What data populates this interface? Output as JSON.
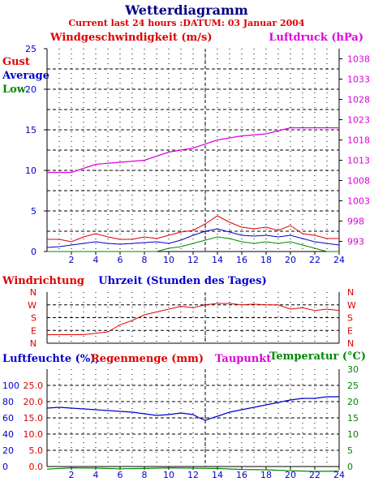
{
  "header": {
    "title": "Wetterdiagramm",
    "subtitle": "Current last 24 hours :DATUM: 03 Januar 2004"
  },
  "colors": {
    "red": "#dd0000",
    "blue": "#0000cc",
    "green": "#008800",
    "magenta": "#dd00dd",
    "black": "#000000",
    "grid": "#000000",
    "title": "#000080"
  },
  "chart_data": [
    {
      "type": "line",
      "title": "",
      "left_axis_label": "Windgeschwindigkeit (m/s)",
      "right_axis_label": "Luftdruck (hPa)",
      "xlabel": "Uhrzeit (Stunden des Tages)",
      "xlim": [
        0,
        24
      ],
      "x_ticks": [
        "2",
        "4",
        "6",
        "8",
        "10",
        "12",
        "14",
        "16",
        "18",
        "20",
        "22",
        "24"
      ],
      "ylim_left": [
        0,
        25
      ],
      "y_ticks_left": [
        "0",
        "5",
        "10",
        "15",
        "20",
        "25"
      ],
      "ylim_right": [
        990.5,
        1040.5
      ],
      "y_ticks_right": [
        "993",
        "998",
        "1003",
        "1008",
        "1013",
        "1018",
        "1023",
        "1028",
        "1033",
        "1038"
      ],
      "legend": [
        "Gust",
        "Average",
        "Low"
      ],
      "legend_placement": "top-left",
      "series": [
        {
          "name": "Gust",
          "color": "#dd0000",
          "x": [
            0,
            1,
            2,
            3,
            4,
            5,
            6,
            7,
            8,
            9,
            10,
            11,
            12,
            13,
            14,
            15,
            16,
            17,
            18,
            19,
            20,
            21,
            22,
            23,
            24
          ],
          "values": [
            1.5,
            1.5,
            1.2,
            1.8,
            2.2,
            1.8,
            1.5,
            1.5,
            1.8,
            1.6,
            2.0,
            2.4,
            2.6,
            3.4,
            4.4,
            3.6,
            3.0,
            2.8,
            3.0,
            2.6,
            3.2,
            2.2,
            2.0,
            1.6,
            1.6
          ]
        },
        {
          "name": "Average",
          "color": "#0000cc",
          "x": [
            0,
            1,
            2,
            3,
            4,
            5,
            6,
            7,
            8,
            9,
            10,
            11,
            12,
            13,
            14,
            15,
            16,
            17,
            18,
            19,
            20,
            21,
            22,
            23,
            24
          ],
          "values": [
            0.5,
            0.6,
            0.8,
            1.0,
            1.2,
            1.0,
            0.9,
            1.0,
            1.1,
            1.2,
            1.0,
            1.4,
            2.0,
            2.5,
            2.8,
            2.4,
            2.0,
            1.9,
            2.0,
            1.8,
            2.0,
            1.6,
            1.2,
            1.0,
            0.8
          ]
        },
        {
          "name": "Low",
          "color": "#008800",
          "x": [
            0,
            1,
            2,
            3,
            4,
            5,
            6,
            7,
            8,
            9,
            10,
            11,
            12,
            13,
            14,
            15,
            16,
            17,
            18,
            19,
            20,
            21,
            22,
            23,
            24
          ],
          "values": [
            0,
            0,
            0,
            0,
            0,
            0,
            0,
            0,
            0,
            0,
            0.4,
            0.6,
            1.0,
            1.4,
            1.8,
            1.6,
            1.2,
            1.0,
            1.2,
            1.0,
            1.2,
            0.8,
            0.4,
            0,
            0
          ]
        },
        {
          "name": "Luftdruck",
          "axis": "right",
          "color": "#dd00dd",
          "x": [
            0,
            2,
            4,
            6,
            8,
            10,
            12,
            14,
            16,
            18,
            20,
            22,
            24
          ],
          "values": [
            1010,
            1010,
            1012,
            1012.5,
            1013,
            1015,
            1016,
            1018,
            1019,
            1019.5,
            1021,
            1021,
            1021
          ]
        }
      ],
      "vline_x": 13
    },
    {
      "type": "line",
      "title": "Windrichtung",
      "xlim": [
        0,
        24
      ],
      "y_ticks_left": [
        "N",
        "W",
        "S",
        "E",
        "N"
      ],
      "y_ticks_right": [
        "N",
        "W",
        "S",
        "E",
        "N"
      ],
      "series": [
        {
          "name": "Windrichtung",
          "color": "#dd0000",
          "x": [
            0,
            1,
            2,
            3,
            4,
            5,
            6,
            7,
            8,
            9,
            10,
            11,
            12,
            13,
            14,
            15,
            16,
            17,
            18,
            19,
            20,
            21,
            22,
            23,
            24
          ],
          "values": [
            60,
            60,
            60,
            60,
            70,
            80,
            130,
            160,
            200,
            220,
            240,
            260,
            250,
            270,
            280,
            280,
            270,
            275,
            270,
            270,
            240,
            250,
            230,
            240,
            230
          ]
        }
      ],
      "direction_range": [
        0,
        360
      ],
      "vline_x": 13
    },
    {
      "type": "line",
      "title": "",
      "labels": {
        "humidity": "Luftfeuchte (%),",
        "rain": "Regenmenge (mm)",
        "dewpoint": "Taupunkt",
        "temperature": "Temperatur (°C)"
      },
      "xlim": [
        0,
        24
      ],
      "x_ticks": [
        "2",
        "4",
        "6",
        "8",
        "10",
        "12",
        "14",
        "16",
        "18",
        "20",
        "22",
        "24"
      ],
      "y_ticks_humidity": [
        "0",
        "20",
        "40",
        "60",
        "80",
        "100"
      ],
      "y_ticks_rain": [
        "0.0",
        "5.0",
        "10.0",
        "15.0",
        "20.0",
        "25.0"
      ],
      "y_ticks_temp": [
        "0",
        "5",
        "10",
        "15",
        "20",
        "25",
        "30"
      ],
      "ylim_temp": [
        0,
        30
      ],
      "series": [
        {
          "name": "Luftfeuchte (%)",
          "color": "#0000cc",
          "ylim": [
            0,
            120
          ],
          "x": [
            0,
            1,
            2,
            3,
            4,
            5,
            6,
            7,
            8,
            9,
            10,
            11,
            12,
            12.5,
            13,
            14,
            15,
            16,
            17,
            18,
            19,
            20,
            21,
            22,
            23,
            24
          ],
          "values": [
            72,
            73,
            72,
            71,
            70,
            69,
            68,
            67,
            65,
            63,
            64,
            66,
            64,
            60,
            57,
            62,
            67,
            70,
            73,
            76,
            79,
            82,
            84,
            84,
            86,
            86
          ]
        },
        {
          "name": "Temperatur (°C)",
          "color": "#008800",
          "ylim": [
            0,
            30
          ],
          "x": [
            0,
            2,
            4,
            6,
            8,
            10,
            12,
            14,
            16,
            18,
            20,
            22,
            24
          ],
          "values": [
            -0.8,
            -0.4,
            -0.5,
            -0.7,
            -0.6,
            -0.4,
            -0.5,
            -0.6,
            -0.9,
            -1.0,
            -1.3,
            -1.5,
            -1.4
          ]
        }
      ],
      "vline_x": 13
    }
  ]
}
